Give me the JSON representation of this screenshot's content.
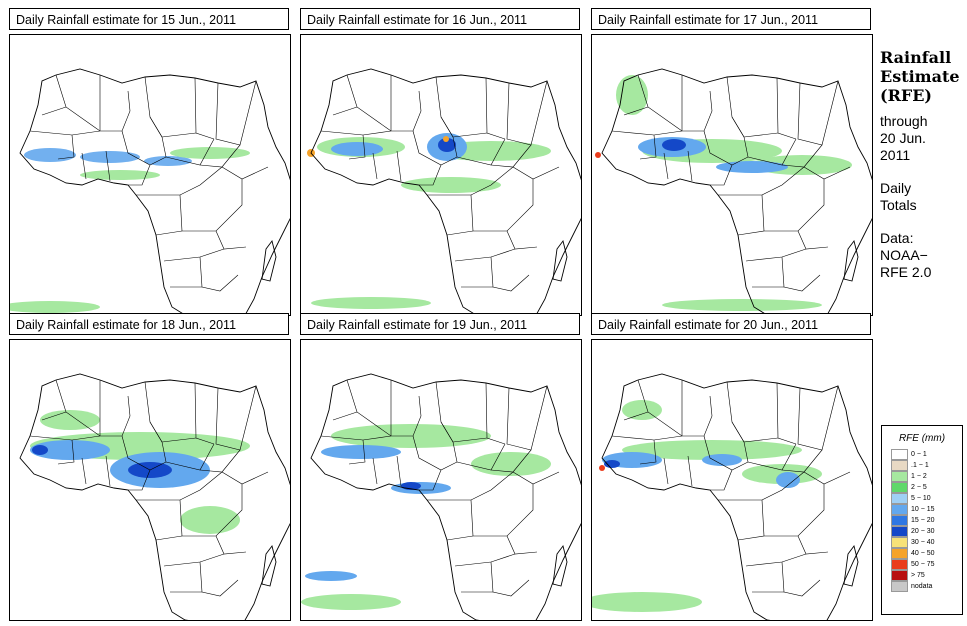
{
  "panels": [
    {
      "title": "Daily Rainfall estimate for  15 Jun., 2011",
      "date": "15 Jun., 2011"
    },
    {
      "title": "Daily Rainfall estimate for  16 Jun., 2011",
      "date": "16 Jun., 2011"
    },
    {
      "title": "Daily Rainfall estimate for  17 Jun., 2011",
      "date": "17 Jun., 2011"
    },
    {
      "title": "Daily Rainfall estimate for  18 Jun., 2011",
      "date": "18 Jun., 2011"
    },
    {
      "title": "Daily Rainfall estimate for  19 Jun., 2011",
      "date": "19 Jun., 2011"
    },
    {
      "title": "Daily Rainfall estimate for  20 Jun., 2011",
      "date": "20 Jun., 2011"
    }
  ],
  "side": {
    "title_line1": "Rainfall",
    "title_line2": "Estimate",
    "title_line3": "(RFE)",
    "through_line1": "through",
    "through_line2": "20 Jun.",
    "through_line3": "2011",
    "totals_line1": "Daily",
    "totals_line2": "Totals",
    "data_line1": "Data:",
    "data_line2": "NOAA−",
    "data_line3": "RFE 2.0"
  },
  "legend": {
    "title": "RFE (mm)",
    "items": [
      {
        "label": "0 − 1",
        "color": "#ffffff"
      },
      {
        "label": ".1 − 1",
        "color": "#e8d9c4"
      },
      {
        "label": "1 − 2",
        "color": "#a6e8a0"
      },
      {
        "label": "2 − 5",
        "color": "#5fd86a"
      },
      {
        "label": "5 − 10",
        "color": "#9fd0f5"
      },
      {
        "label": "10 − 15",
        "color": "#63a8ee"
      },
      {
        "label": "15 − 20",
        "color": "#2f77e3"
      },
      {
        "label": "20 − 30",
        "color": "#1448c8"
      },
      {
        "label": "30 − 40",
        "color": "#f7e278"
      },
      {
        "label": "40 − 50",
        "color": "#f5a32a"
      },
      {
        "label": "50 − 75",
        "color": "#ea3c1c"
      },
      {
        "label": "> 75",
        "color": "#b81010"
      },
      {
        "label": "nodata",
        "color": "#c8c8c8"
      }
    ]
  }
}
